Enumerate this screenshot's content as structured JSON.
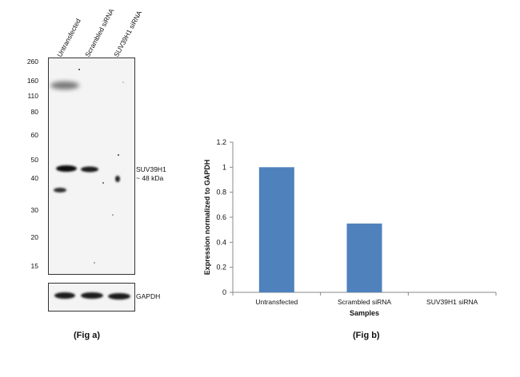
{
  "fig_a": {
    "lanes": [
      "Untransfected",
      "Scrambled siRNA",
      "SUV39H1 siRNA"
    ],
    "mw_markers": [
      "260",
      "160",
      "110",
      "80",
      "60",
      "50",
      "40",
      "30",
      "20",
      "15"
    ],
    "target_label_line1": "SUV39H1",
    "target_label_line2": "~ 48 kDa",
    "loading_control_label": "GAPDH",
    "caption": "(Fig a)"
  },
  "fig_b": {
    "caption": "(Fig b)"
  },
  "chart_data": {
    "type": "bar",
    "categories": [
      "Untransfected",
      "Scrambled siRNA",
      "SUV39H1 siRNA"
    ],
    "values": [
      1.0,
      0.55,
      0.0
    ],
    "xlabel": "Samples",
    "ylabel": "Expression normalized to GAPDH",
    "ylim": [
      0,
      1.2
    ],
    "yticks": [
      "0",
      "0.2",
      "0.4",
      "0.6",
      "0.8",
      "1",
      "1.2"
    ],
    "bar_color": "#4f81bd",
    "grid": false
  }
}
